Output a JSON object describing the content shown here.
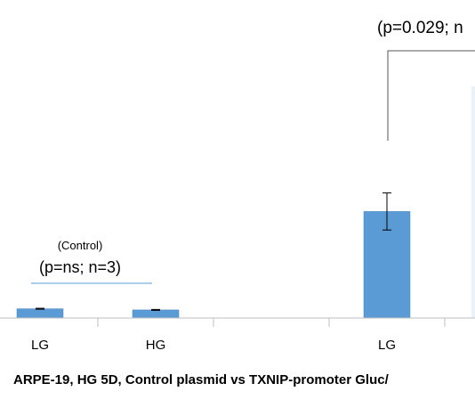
{
  "chart_data": {
    "type": "bar",
    "title": "ARPE-19, HG 5D, Control plasmid vs TXNIP-promoter Gluc/",
    "categories": [
      "LG",
      "HG",
      "",
      "LG"
    ],
    "series": [
      {
        "values": [
          4,
          3.5,
          null,
          46
        ],
        "errors": [
          0.2,
          0.2,
          null,
          8
        ]
      }
    ],
    "ylim": [
      0,
      100
    ],
    "grid": false,
    "legend": "none",
    "annotations": {
      "control_label": "(Control)",
      "control_stat": "(p=ns; n=3)",
      "txnip_stat": "(p=0.029; n"
    },
    "colors": {
      "bar": "#5B9BD5",
      "bar_edge": "#4a86bf",
      "axis": "#bfbfbf",
      "control_line": "#5B9BD5",
      "bracket": "#555555",
      "text": "#000000"
    }
  }
}
